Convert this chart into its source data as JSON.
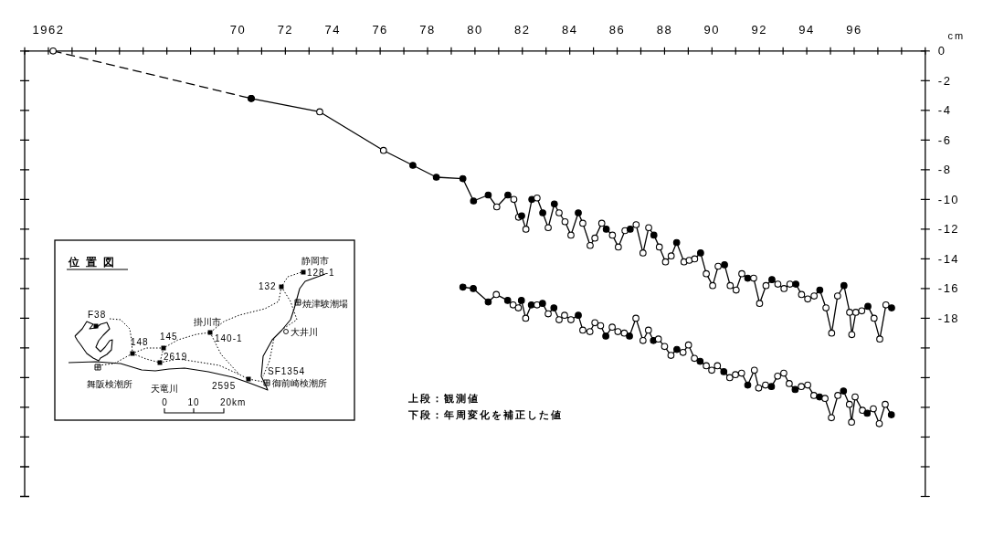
{
  "chart_data": {
    "type": "line",
    "ylabel": "cm",
    "marker": "circle",
    "line_style": "solid",
    "xlim": [
      1961,
      1999
    ],
    "xticks": [
      {
        "value": 1961,
        "label": null
      },
      1962,
      {
        "value": 1963,
        "label": null
      },
      {
        "value": 1964,
        "label": null
      },
      {
        "value": 1965,
        "label": null
      },
      {
        "value": 1966,
        "label": null
      },
      {
        "value": 1967,
        "label": null
      },
      {
        "value": 1968,
        "label": null
      },
      {
        "value": 1969,
        "label": null
      },
      {
        "value": 1970,
        "label": "70"
      },
      {
        "value": 1971,
        "label": null
      },
      {
        "value": 1972,
        "label": "72"
      },
      {
        "value": 1973,
        "label": null
      },
      {
        "value": 1974,
        "label": "74"
      },
      {
        "value": 1975,
        "label": null
      },
      {
        "value": 1976,
        "label": "76"
      },
      {
        "value": 1977,
        "label": null
      },
      {
        "value": 1978,
        "label": "78"
      },
      {
        "value": 1979,
        "label": null
      },
      {
        "value": 1980,
        "label": "80"
      },
      {
        "value": 1981,
        "label": null
      },
      {
        "value": 1982,
        "label": "82"
      },
      {
        "value": 1983,
        "label": null
      },
      {
        "value": 1984,
        "label": "84"
      },
      {
        "value": 1985,
        "label": null
      },
      {
        "value": 1986,
        "label": "86"
      },
      {
        "value": 1987,
        "label": null
      },
      {
        "value": 1988,
        "label": "88"
      },
      {
        "value": 1989,
        "label": null
      },
      {
        "value": 1990,
        "label": "90"
      },
      {
        "value": 1991,
        "label": null
      },
      {
        "value": 1992,
        "label": "92"
      },
      {
        "value": 1993,
        "label": null
      },
      {
        "value": 1994,
        "label": "94"
      },
      {
        "value": 1995,
        "label": null
      },
      {
        "value": 1996,
        "label": "96"
      },
      {
        "value": 1997,
        "label": null
      },
      {
        "value": 1998,
        "label": null
      },
      {
        "value": 1999,
        "label": null
      }
    ],
    "ylim": [
      -30,
      0
    ],
    "yticks": [
      0,
      -2,
      -4,
      -6,
      -8,
      -10,
      -12,
      -14,
      -16,
      -18,
      {
        "value": -20,
        "label": null
      },
      {
        "value": -22,
        "label": null
      },
      {
        "value": -24,
        "label": null
      },
      {
        "value": -26,
        "label": null
      },
      {
        "value": -28,
        "label": null
      },
      {
        "value": -30,
        "label": null
      }
    ],
    "series": [
      {
        "color": "#000000",
        "line_style": "dashed",
        "x": [
          1962.2,
          1970.56
        ],
        "values": [
          0,
          -3.2
        ],
        "colors": [
          "#ffffff",
          "#000000"
        ]
      },
      {
        "color": "#000000",
        "x": [
          1970.56,
          1973.45,
          1976.14,
          1977.38,
          1978.37,
          1979.49,
          1979.94,
          1980.56,
          1980.92,
          1981.39,
          1981.64,
          1981.84,
          1981.97,
          1982.15,
          1982.4,
          1982.62,
          1982.86,
          1983.09,
          1983.35,
          1983.55,
          1983.8,
          1984.05,
          1984.36,
          1984.55,
          1984.86,
          1985.06,
          1985.35,
          1985.54,
          1985.8,
          1986.05,
          1986.33,
          1986.55,
          1986.8,
          1987.09,
          1987.33,
          1987.55,
          1987.78,
          1988.04,
          1988.28,
          1988.51,
          1988.82,
          1989.04,
          1989.27,
          1989.52,
          1989.76,
          1990.03,
          1990.26,
          1990.53,
          1990.77,
          1991.02,
          1991.26,
          1991.51,
          1991.76,
          1992.01,
          1992.28,
          1992.53,
          1992.78,
          1993.04,
          1993.29,
          1993.54,
          1993.78,
          1994.04,
          1994.31,
          1994.55,
          1994.81,
          1995.05,
          1995.3,
          1995.57,
          1995.81,
          1995.9,
          1996.07,
          1996.32,
          1996.58,
          1996.84,
          1997.08,
          1997.34,
          1997.58
        ],
        "values": [
          -3.2,
          -4.1,
          -6.7,
          -7.7,
          -8.5,
          -8.6,
          -10.1,
          -9.7,
          -10.5,
          -9.7,
          -10.0,
          -11.2,
          -11.1,
          -12.0,
          -10.0,
          -9.9,
          -10.9,
          -11.9,
          -10.3,
          -10.9,
          -11.5,
          -12.4,
          -10.9,
          -11.6,
          -13.1,
          -12.6,
          -11.6,
          -12.0,
          -12.4,
          -13.2,
          -12.1,
          -12.0,
          -11.7,
          -13.6,
          -11.9,
          -12.4,
          -13.2,
          -14.2,
          -13.8,
          -12.9,
          -14.2,
          -14.1,
          -14.0,
          -13.6,
          -15.0,
          -15.8,
          -14.5,
          -14.4,
          -15.8,
          -16.1,
          -15.0,
          -15.3,
          -15.3,
          -17.0,
          -15.8,
          -15.4,
          -15.7,
          -16.0,
          -15.7,
          -15.7,
          -16.4,
          -16.7,
          -16.5,
          -16.1,
          -17.3,
          -19.0,
          -16.5,
          -15.8,
          -17.6,
          -19.1,
          -17.6,
          -17.5,
          -17.2,
          -18.0,
          -19.4,
          -17.1,
          -17.3
        ],
        "colors": [
          "#000000",
          "#ffffff",
          "#ffffff",
          "#000000",
          "#000000",
          "#000000",
          "#000000",
          "#000000",
          "#ffffff",
          "#000000",
          "#ffffff",
          "#ffffff",
          "#000000",
          "#ffffff",
          "#000000",
          "#ffffff",
          "#000000",
          "#ffffff",
          "#000000",
          "#ffffff",
          "#ffffff",
          "#ffffff",
          "#000000",
          "#ffffff",
          "#ffffff",
          "#ffffff",
          "#ffffff",
          "#000000",
          "#ffffff",
          "#ffffff",
          "#ffffff",
          "#000000",
          "#ffffff",
          "#ffffff",
          "#ffffff",
          "#000000",
          "#ffffff",
          "#ffffff",
          "#ffffff",
          "#000000",
          "#ffffff",
          "#ffffff",
          "#ffffff",
          "#000000",
          "#ffffff",
          "#ffffff",
          "#ffffff",
          "#000000",
          "#ffffff",
          "#ffffff",
          "#ffffff",
          "#000000",
          "#ffffff",
          "#ffffff",
          "#ffffff",
          "#000000",
          "#ffffff",
          "#ffffff",
          "#ffffff",
          "#000000",
          "#ffffff",
          "#ffffff",
          "#ffffff",
          "#000000",
          "#ffffff",
          "#ffffff",
          "#ffffff",
          "#000000",
          "#ffffff",
          "#ffffff",
          "#ffffff",
          "#ffffff",
          "#000000",
          "#ffffff",
          "#ffffff",
          "#ffffff",
          "#000000"
        ]
      },
      {
        "color": "#000000",
        "x": [
          1979.49,
          1979.93,
          1980.56,
          1980.9,
          1981.38,
          1981.61,
          1981.83,
          1981.96,
          1982.14,
          1982.38,
          1982.62,
          1982.85,
          1983.09,
          1983.33,
          1983.55,
          1983.78,
          1984.05,
          1984.36,
          1984.55,
          1984.85,
          1985.06,
          1985.3,
          1985.52,
          1985.79,
          1986.03,
          1986.3,
          1986.52,
          1986.79,
          1987.09,
          1987.32,
          1987.53,
          1987.74,
          1988.0,
          1988.27,
          1988.52,
          1988.78,
          1989.01,
          1989.26,
          1989.5,
          1989.76,
          1989.99,
          1990.23,
          1990.5,
          1990.75,
          1990.99,
          1991.25,
          1991.51,
          1991.79,
          1991.97,
          1992.26,
          1992.51,
          1992.77,
          1993.03,
          1993.26,
          1993.51,
          1993.77,
          1994.04,
          1994.3,
          1994.54,
          1994.77,
          1995.04,
          1995.31,
          1995.55,
          1995.8,
          1995.89,
          1996.04,
          1996.35,
          1996.55,
          1996.81,
          1997.06,
          1997.31,
          1997.57
        ],
        "values": [
          -15.9,
          -16.0,
          -16.9,
          -16.4,
          -16.8,
          -17.1,
          -17.3,
          -16.8,
          -18.0,
          -17.1,
          -17.1,
          -17.0,
          -17.7,
          -17.3,
          -18.1,
          -17.8,
          -18.1,
          -17.8,
          -18.8,
          -18.9,
          -18.3,
          -18.5,
          -19.2,
          -18.6,
          -18.9,
          -19.0,
          -19.2,
          -18.0,
          -19.5,
          -18.8,
          -19.5,
          -19.4,
          -19.9,
          -20.5,
          -20.1,
          -20.3,
          -19.8,
          -20.7,
          -20.9,
          -21.2,
          -21.5,
          -21.2,
          -21.6,
          -22.0,
          -21.8,
          -21.7,
          -22.5,
          -21.5,
          -22.7,
          -22.5,
          -22.6,
          -21.9,
          -21.7,
          -22.4,
          -22.8,
          -22.6,
          -22.5,
          -23.2,
          -23.3,
          -23.4,
          -24.7,
          -23.2,
          -22.9,
          -23.8,
          -25.0,
          -23.3,
          -24.2,
          -24.4,
          -24.1,
          -25.1,
          -23.8,
          -24.5
        ],
        "colors": [
          "#000000",
          "#000000",
          "#000000",
          "#ffffff",
          "#000000",
          "#ffffff",
          "#ffffff",
          "#000000",
          "#ffffff",
          "#000000",
          "#ffffff",
          "#000000",
          "#ffffff",
          "#000000",
          "#ffffff",
          "#ffffff",
          "#ffffff",
          "#000000",
          "#ffffff",
          "#ffffff",
          "#ffffff",
          "#ffffff",
          "#000000",
          "#ffffff",
          "#ffffff",
          "#ffffff",
          "#000000",
          "#ffffff",
          "#ffffff",
          "#ffffff",
          "#000000",
          "#ffffff",
          "#ffffff",
          "#ffffff",
          "#000000",
          "#ffffff",
          "#ffffff",
          "#ffffff",
          "#000000",
          "#ffffff",
          "#ffffff",
          "#ffffff",
          "#000000",
          "#ffffff",
          "#ffffff",
          "#ffffff",
          "#000000",
          "#ffffff",
          "#ffffff",
          "#ffffff",
          "#000000",
          "#ffffff",
          "#ffffff",
          "#ffffff",
          "#000000",
          "#ffffff",
          "#ffffff",
          "#ffffff",
          "#000000",
          "#ffffff",
          "#ffffff",
          "#ffffff",
          "#000000",
          "#ffffff",
          "#ffffff",
          "#ffffff",
          "#ffffff",
          "#000000",
          "#ffffff",
          "#ffffff",
          "#ffffff",
          "#000000"
        ]
      }
    ],
    "annotations": [
      "上段：観測値",
      "下段：年周変化を補正した値",
      "位置図",
      "静岡市",
      "128-1",
      "132",
      "焼津験潮場",
      "F38",
      "148",
      "145",
      "掛川市",
      "140-1",
      "大井川",
      "2619",
      "SF1354",
      "舞阪検潮所",
      "天竜川",
      "2595",
      "御前崎検潮所",
      "0",
      "10",
      "20km"
    ]
  }
}
